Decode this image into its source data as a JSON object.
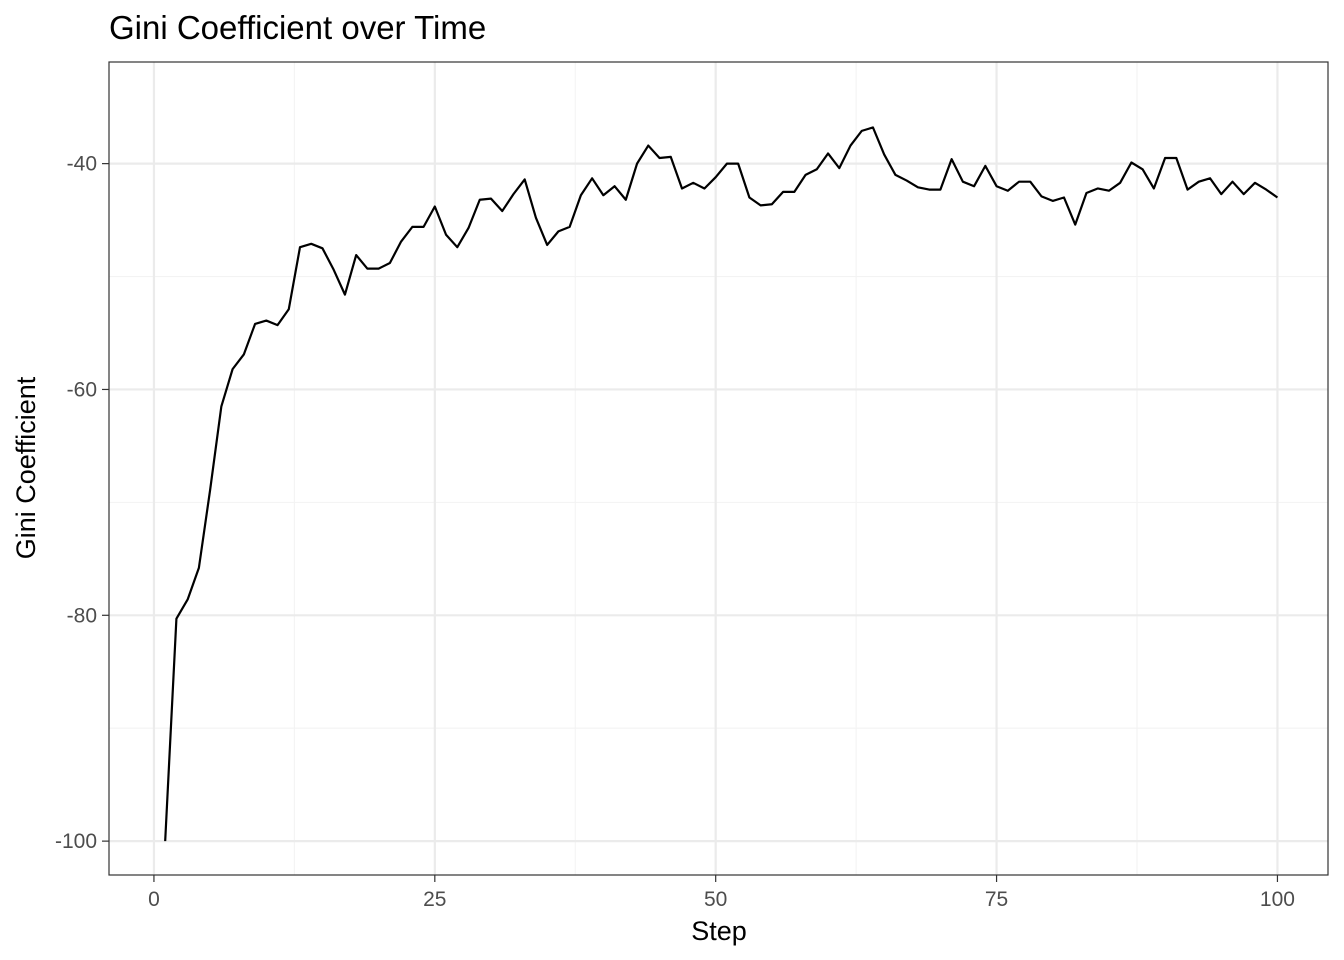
{
  "colors": {
    "background": "#ffffff",
    "panel_border": "#333333",
    "grid_major": "#ebebeb",
    "grid_minor": "#f3f3f3",
    "line": "#000000",
    "tick_text": "#4d4d4d",
    "text": "#000000"
  },
  "chart_data": {
    "type": "line",
    "title": "Gini Coefficient over Time",
    "xlabel": "Step",
    "ylabel": "Gini Coefficient",
    "xlim": [
      -4,
      104.5
    ],
    "ylim": [
      -103,
      -31
    ],
    "x_ticks": [
      0,
      25,
      50,
      75,
      100
    ],
    "x_tick_labels": [
      "0",
      "25",
      "50",
      "75",
      "100"
    ],
    "x_minor_ticks": [
      12.5,
      37.5,
      62.5,
      87.5
    ],
    "y_ticks": [
      -100,
      -80,
      -60,
      -40
    ],
    "y_tick_labels": [
      "-100",
      "-80",
      "-60",
      "-40"
    ],
    "y_minor_ticks": [
      -90,
      -70,
      -50
    ],
    "grid": true,
    "legend": "none",
    "series": [
      {
        "x": [
          1,
          2,
          3,
          4,
          5,
          6,
          7,
          8,
          9,
          10,
          11,
          12,
          13,
          14,
          15,
          16,
          17,
          18,
          19,
          20,
          21,
          22,
          23,
          24,
          25,
          26,
          27,
          28,
          29,
          30,
          31,
          32,
          33,
          34,
          35,
          36,
          37,
          38,
          39,
          40,
          41,
          42,
          43,
          44,
          45,
          46,
          47,
          48,
          49,
          50,
          51,
          52,
          53,
          54,
          55,
          56,
          57,
          58,
          59,
          60,
          61,
          62,
          63,
          64,
          65,
          66,
          67,
          68,
          69,
          70,
          71,
          72,
          73,
          74,
          75,
          76,
          77,
          78,
          79,
          80,
          81,
          82,
          83,
          84,
          85,
          86,
          87,
          88,
          89,
          90,
          91,
          92,
          93,
          94,
          95,
          96,
          97,
          98,
          99,
          100
        ],
        "values": [
          -100,
          -80.3,
          -78.6,
          -75.8,
          -68.9,
          -61.5,
          -58.2,
          -56.9,
          -54.2,
          -53.9,
          -54.3,
          -52.9,
          -47.4,
          -47.1,
          -47.5,
          -49.4,
          -51.6,
          -48.1,
          -49.3,
          -49.3,
          -48.8,
          -46.9,
          -45.6,
          -45.6,
          -43.8,
          -46.3,
          -47.4,
          -45.7,
          -43.2,
          -43.1,
          -44.2,
          -42.7,
          -41.4,
          -44.8,
          -47.2,
          -46.0,
          -45.6,
          -42.8,
          -41.3,
          -42.8,
          -42.0,
          -43.2,
          -40.0,
          -38.4,
          -39.5,
          -39.4,
          -42.2,
          -41.7,
          -42.2,
          -41.2,
          -40.0,
          -40.0,
          -43.0,
          -43.7,
          -43.6,
          -42.5,
          -42.5,
          -41.0,
          -40.5,
          -39.1,
          -40.4,
          -38.4,
          -37.1,
          -36.8,
          -39.2,
          -41.0,
          -41.5,
          -42.1,
          -42.3,
          -42.3,
          -39.6,
          -41.6,
          -42.0,
          -40.2,
          -42.0,
          -42.4,
          -41.6,
          -41.6,
          -42.9,
          -43.3,
          -43.0,
          -45.4,
          -42.6,
          -42.2,
          -42.4,
          -41.7,
          -39.9,
          -40.5,
          -42.2,
          -39.5,
          -39.5,
          -42.3,
          -41.6,
          -41.3,
          -42.7,
          -41.6,
          -42.7,
          -41.7,
          -42.3,
          -43.0
        ]
      }
    ]
  }
}
